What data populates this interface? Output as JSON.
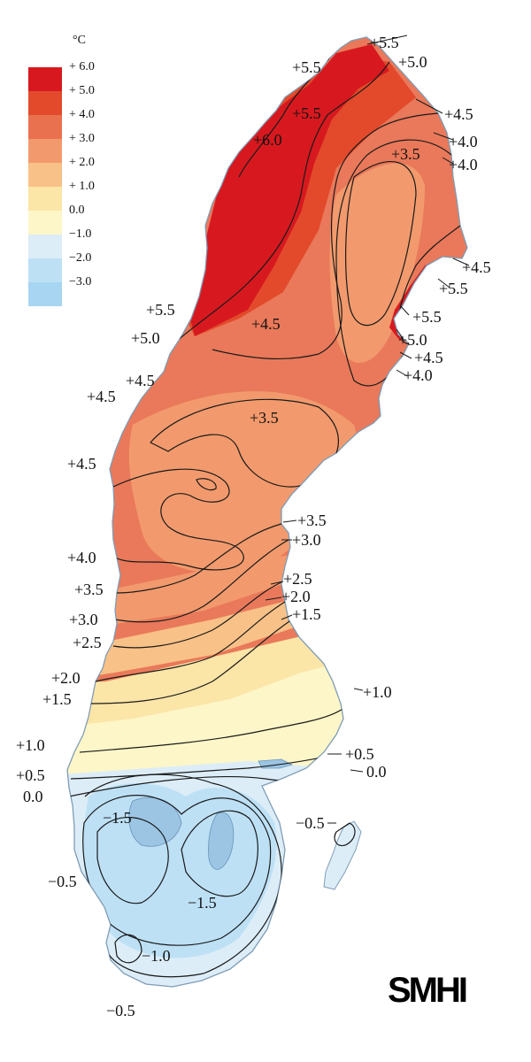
{
  "legend": {
    "unit": "°C",
    "classes": [
      {
        "label": "+ 6.0",
        "color": "#d7191f"
      },
      {
        "label": "+ 5.0",
        "color": "#e24a2b"
      },
      {
        "label": "+ 4.0",
        "color": "#ea7150"
      },
      {
        "label": "+ 3.0",
        "color": "#f29a6d"
      },
      {
        "label": "+ 2.0",
        "color": "#f8c187"
      },
      {
        "label": "+ 1.0",
        "color": "#fbe5a7"
      },
      {
        "label": "0.0",
        "color": "#fdf6c8"
      },
      {
        "label": "−1.0",
        "color": "#dcedf8"
      },
      {
        "label": "−2.0",
        "color": "#bde0f5"
      },
      {
        "label": "−3.0",
        "color": "#a7d5f2"
      }
    ]
  },
  "isoline_labels": [
    "+5.5",
    "+5.5",
    "+5.0",
    "+4.5",
    "+5.5",
    "+6.0",
    "+4.0",
    "+3.5",
    "+4.0",
    "+4.5",
    "+5.5",
    "+5.5",
    "+5.5",
    "+5.0",
    "+4.5",
    "+4.0",
    "+5.0",
    "+4.5",
    "+4.5",
    "+4.5",
    "+3.5",
    "+4.5",
    "+3.5",
    "+3.0",
    "+4.0",
    "+2.5",
    "+2.0",
    "+3.5",
    "+1.5",
    "+3.0",
    "+2.5",
    "+2.0",
    "+1.5",
    "+1.0",
    "+1.0",
    "+0.5",
    "+0.5",
    "0.0",
    "0.0",
    "−1.5",
    "−0.5",
    "−0.5",
    "−1.5",
    "−1.0",
    "−0.5"
  ],
  "logo": {
    "text": "SMHI"
  },
  "colors": {
    "border": "#7f9cb5",
    "isoline": "#1a1a1a"
  }
}
